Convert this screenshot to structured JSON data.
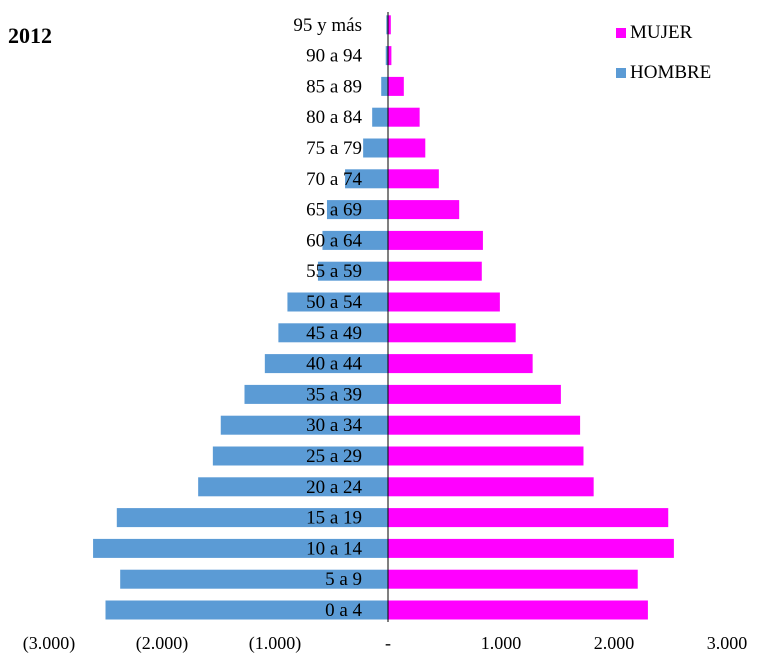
{
  "chart_data": {
    "type": "bar",
    "orientation": "horizontal",
    "title": "2012",
    "categories": [
      "0 a 4",
      "5 a 9",
      "10 a 14",
      "15 a 19",
      "20 a 24",
      "25 a 29",
      "30 a 34",
      "35 a 39",
      "40 a 44",
      "45 a 49",
      "50 a 54",
      "55 a 59",
      "60 a 64",
      "65 a 69",
      "70 a 74",
      "75 a 79",
      "80 a 84",
      "85 a 89",
      "90 a 94",
      "95  y más"
    ],
    "series": [
      {
        "name": "MUJER",
        "color": "#ff00ff",
        "values": [
          2300,
          2210,
          2530,
          2480,
          1820,
          1730,
          1700,
          1530,
          1280,
          1130,
          990,
          830,
          840,
          630,
          450,
          330,
          280,
          140,
          30,
          25
        ]
      },
      {
        "name": "HOMBRE",
        "color": "#5b9bd5",
        "values": [
          -2500,
          -2370,
          -2610,
          -2400,
          -1680,
          -1550,
          -1480,
          -1270,
          -1090,
          -970,
          -890,
          -620,
          -580,
          -540,
          -380,
          -220,
          -140,
          -60,
          -20,
          -15
        ]
      }
    ],
    "xlim": [
      -3000,
      3000
    ],
    "xticks": [
      -3000,
      -2000,
      -1000,
      0,
      1000,
      2000,
      3000
    ],
    "xtick_labels": [
      "(3.000)",
      "(2.000)",
      "(1.000)",
      "-",
      "1.000",
      "2.000",
      "3.000"
    ],
    "legend_position": "top-right",
    "grid": false
  }
}
